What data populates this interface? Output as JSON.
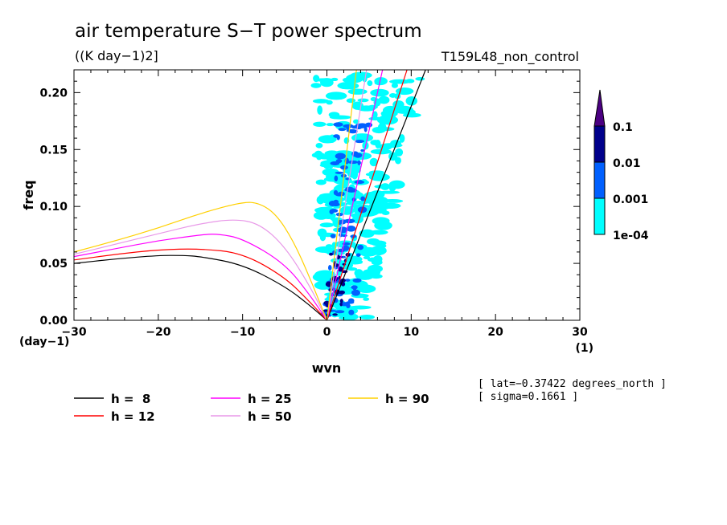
{
  "title": "air temperature S−T power spectrum",
  "units": "((K day−1)2]",
  "experiment": "T159L48_non_control",
  "info": {
    "lat": "[ lat=−0.37422 degrees_north ]",
    "sigma": "[ sigma=0.1661 ]"
  },
  "colorbar": {
    "labels": [
      "0.1",
      "0.01",
      "0.001",
      "1e-04"
    ],
    "colors": {
      "extend": "#4b0082",
      "level3": "#00008b",
      "level2": "#0060ff",
      "level1": "#00ffff"
    }
  },
  "chart_data": {
    "type": "line",
    "xlabel": "wvn",
    "ylabel": "freq",
    "x_unit": "(1)",
    "y_unit": "(day−1)",
    "xlim": [
      -30,
      30
    ],
    "ylim": [
      0,
      0.22
    ],
    "x_ticks": [
      "−30",
      "−20",
      "−10",
      "0",
      "10",
      "20",
      "30"
    ],
    "y_ticks": [
      "0.00",
      "0.05",
      "0.10",
      "0.15",
      "0.20"
    ],
    "legend_position": "bottom",
    "series": [
      {
        "name": "h =  8",
        "color": "#000000",
        "rossby": {
          "x": [
            -30,
            -25,
            -20,
            -17,
            -15,
            -10,
            -5,
            -2,
            0
          ],
          "y": [
            0.05,
            0.054,
            0.057,
            0.057,
            0.056,
            0.049,
            0.03,
            0.013,
            0.0
          ]
        },
        "kelvin": {
          "x": [
            0,
            11.7
          ],
          "y": [
            0.0,
            0.22
          ]
        }
      },
      {
        "name": "h = 12",
        "color": "#ff0000",
        "rossby": {
          "x": [
            -30,
            -25,
            -20,
            -15,
            -10,
            -5,
            -2,
            0
          ],
          "y": [
            0.053,
            0.058,
            0.062,
            0.063,
            0.059,
            0.038,
            0.016,
            0.0
          ]
        },
        "kelvin": {
          "x": [
            0,
            9.5
          ],
          "y": [
            0.0,
            0.22
          ]
        }
      },
      {
        "name": "h = 25",
        "color": "#ff00ff",
        "rossby": {
          "x": [
            -30,
            -25,
            -20,
            -15,
            -13,
            -10,
            -5,
            -2,
            0
          ],
          "y": [
            0.056,
            0.063,
            0.07,
            0.075,
            0.076,
            0.072,
            0.05,
            0.022,
            0.0
          ]
        },
        "kelvin": {
          "x": [
            0,
            6.6
          ],
          "y": [
            0.0,
            0.22
          ]
        }
      },
      {
        "name": "h = 50",
        "color": "#e898e8",
        "rossby": {
          "x": [
            -30,
            -25,
            -20,
            -15,
            -11,
            -8,
            -5,
            -2,
            0
          ],
          "y": [
            0.058,
            0.067,
            0.076,
            0.085,
            0.089,
            0.085,
            0.065,
            0.03,
            0.0
          ]
        },
        "kelvin": {
          "x": [
            0,
            4.7
          ],
          "y": [
            0.0,
            0.22
          ]
        }
      },
      {
        "name": "h = 90",
        "color": "#ffd000",
        "rossby": {
          "x": [
            -30,
            -25,
            -20,
            -15,
            -10,
            -8,
            -6,
            -4,
            -2,
            0
          ],
          "y": [
            0.06,
            0.07,
            0.081,
            0.094,
            0.104,
            0.103,
            0.093,
            0.07,
            0.037,
            0.0
          ]
        },
        "kelvin": {
          "x": [
            0,
            3.5
          ],
          "y": [
            0.0,
            0.22
          ]
        }
      }
    ]
  }
}
